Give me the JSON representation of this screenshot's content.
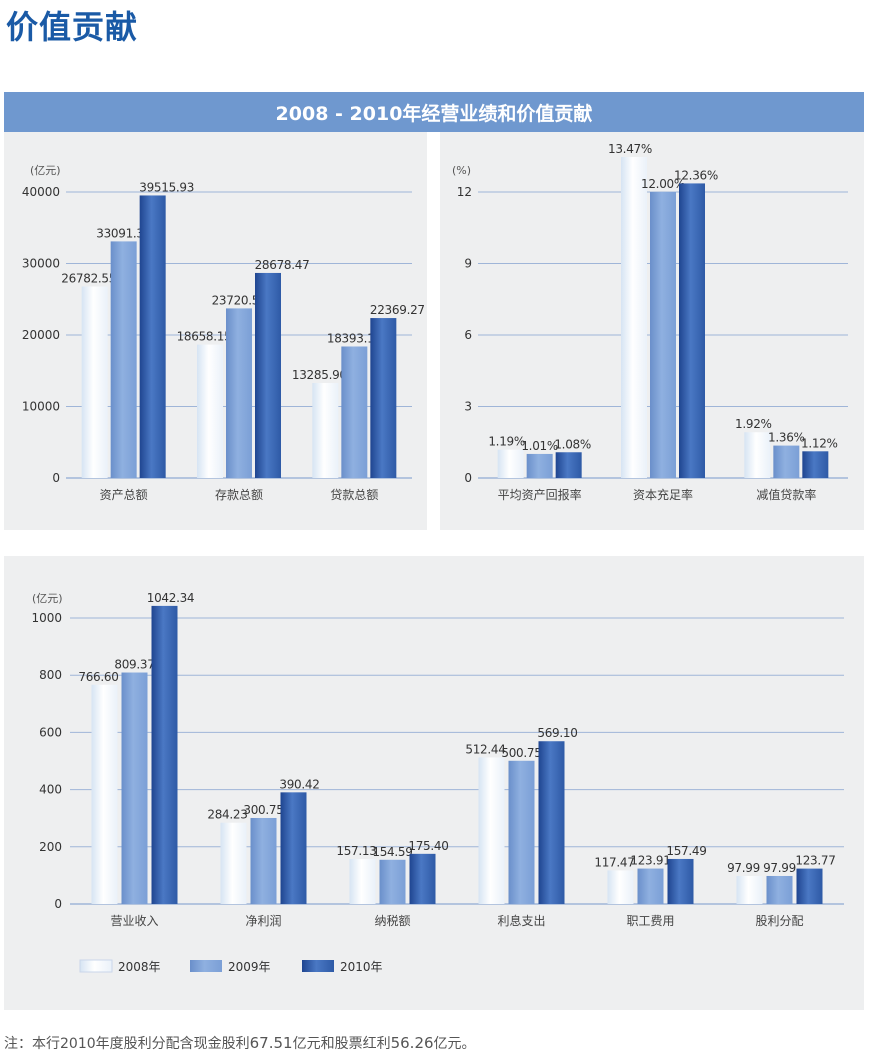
{
  "page": {
    "title": "价值贡献",
    "banner": "2008 - 2010年经营业绩和价值贡献",
    "footnote": {
      "p1": "注：本行2010年度股利分配含现金股利",
      "v1": "67.51",
      "p2": "亿元和股票红利",
      "v2": "56.26",
      "p3": "亿元。"
    }
  },
  "colors": {
    "2008": "#eaf1f9",
    "2009": "#7b9fd6",
    "2010": "#2e5aa6",
    "axis": "#9fb5d8"
  },
  "chart_data": [
    {
      "type": "bar",
      "unit_label": "(亿元)",
      "categories": [
        "资产总额",
        "存款总额",
        "贷款总额"
      ],
      "series": [
        {
          "name": "2008年",
          "values": [
            26782.55,
            18658.15,
            13285.9
          ],
          "labels": [
            "26782.55",
            "18658.15",
            "13285.90"
          ]
        },
        {
          "name": "2009年",
          "values": [
            33091.37,
            23720.55,
            18393.14
          ],
          "labels": [
            "33091.37",
            "23720.55",
            "18393.14"
          ]
        },
        {
          "name": "2010年",
          "values": [
            39515.93,
            28678.47,
            22369.27
          ],
          "labels": [
            "39515.93",
            "28678.47",
            "22369.27"
          ]
        }
      ],
      "yticks": [
        0,
        10000,
        20000,
        30000,
        40000
      ],
      "ylim": [
        0,
        40000
      ],
      "grid": true
    },
    {
      "type": "bar",
      "unit_label": "(%)",
      "categories": [
        "平均资产回报率",
        "资本充足率",
        "减值贷款率"
      ],
      "series": [
        {
          "name": "2008年",
          "values": [
            1.19,
            13.47,
            1.92
          ],
          "labels": [
            "1.19%",
            "13.47%",
            "1.92%"
          ]
        },
        {
          "name": "2009年",
          "values": [
            1.01,
            12.0,
            1.36
          ],
          "labels": [
            "1.01%",
            "12.00%",
            "1.36%"
          ]
        },
        {
          "name": "2010年",
          "values": [
            1.08,
            12.36,
            1.12
          ],
          "labels": [
            "1.08%",
            "12.36%",
            "1.12%"
          ]
        }
      ],
      "yticks": [
        0,
        3,
        6,
        9,
        12
      ],
      "ylim": [
        0,
        12
      ],
      "grid": true
    },
    {
      "type": "bar",
      "unit_label": "(亿元)",
      "categories": [
        "营业收入",
        "净利润",
        "纳税额",
        "利息支出",
        "职工费用",
        "股利分配"
      ],
      "series": [
        {
          "name": "2008年",
          "values": [
            766.6,
            284.23,
            157.13,
            512.44,
            117.47,
            97.99
          ],
          "labels": [
            "766.60",
            "284.23",
            "157.13",
            "512.44",
            "117.47",
            "97.99"
          ]
        },
        {
          "name": "2009年",
          "values": [
            809.37,
            300.75,
            154.59,
            500.75,
            123.91,
            97.99
          ],
          "labels": [
            "809.37",
            "300.75",
            "154.59",
            "500.75",
            "123.91",
            "97.99"
          ]
        },
        {
          "name": "2010年",
          "values": [
            1042.34,
            390.42,
            175.4,
            569.1,
            157.49,
            123.77
          ],
          "labels": [
            "1042.34",
            "390.42",
            "175.40",
            "569.10",
            "157.49",
            "123.77"
          ]
        }
      ],
      "yticks": [
        0,
        200,
        400,
        600,
        800,
        1000
      ],
      "ylim": [
        0,
        1000
      ],
      "grid": true,
      "legend": "bottom-left"
    }
  ]
}
